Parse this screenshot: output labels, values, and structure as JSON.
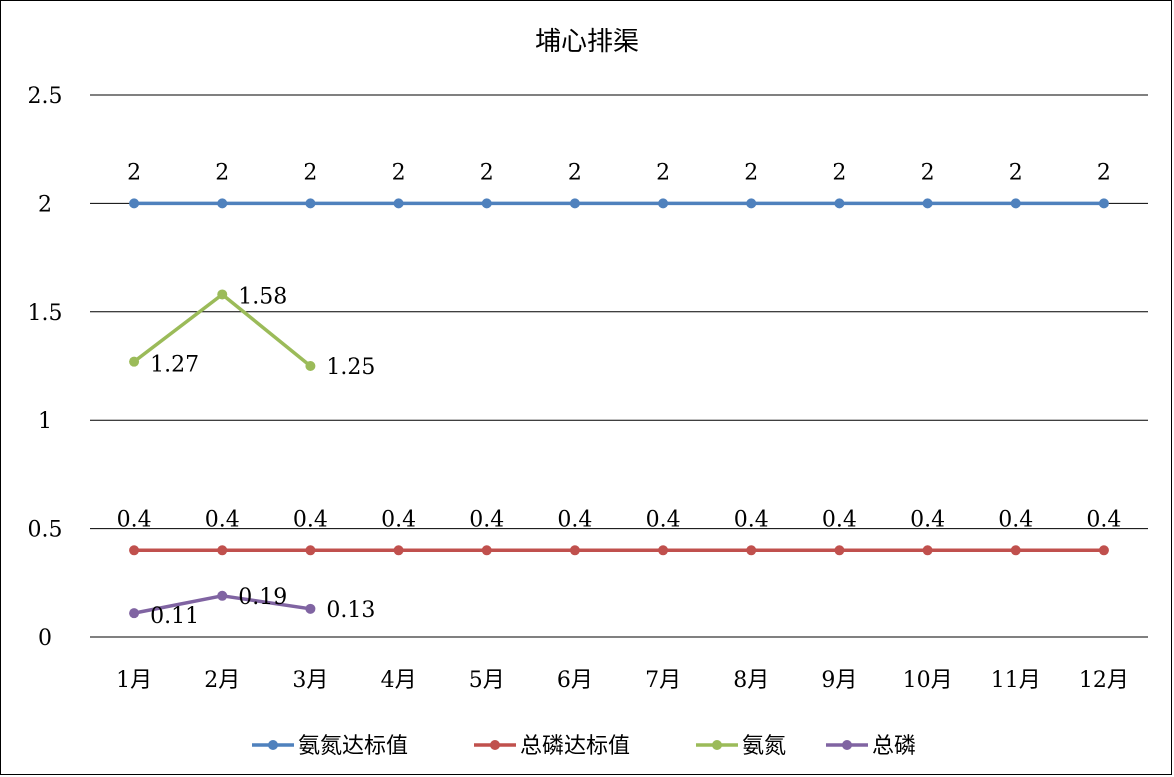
{
  "chart_data": {
    "type": "line",
    "title": "埔心排渠",
    "categories": [
      "1月",
      "2月",
      "3月",
      "4月",
      "5月",
      "6月",
      "7月",
      "8月",
      "9月",
      "10月",
      "11月",
      "12月"
    ],
    "ylim": [
      0,
      2.5
    ],
    "yticks": [
      0,
      0.5,
      1,
      1.5,
      2,
      2.5
    ],
    "ytick_labels": [
      "0",
      "0.5",
      "1",
      "1.5",
      "2",
      "2.5"
    ],
    "grid": true,
    "legend_position": "bottom",
    "series": [
      {
        "name": "氨氮达标值",
        "color": "#4f81bd",
        "values": [
          2,
          2,
          2,
          2,
          2,
          2,
          2,
          2,
          2,
          2,
          2,
          2
        ],
        "labels": [
          "2",
          "2",
          "2",
          "2",
          "2",
          "2",
          "2",
          "2",
          "2",
          "2",
          "2",
          "2"
        ]
      },
      {
        "name": "总磷达标值",
        "color": "#c0504d",
        "values": [
          0.4,
          0.4,
          0.4,
          0.4,
          0.4,
          0.4,
          0.4,
          0.4,
          0.4,
          0.4,
          0.4,
          0.4
        ],
        "labels": [
          "0.4",
          "0.4",
          "0.4",
          "0.4",
          "0.4",
          "0.4",
          "0.4",
          "0.4",
          "0.4",
          "0.4",
          "0.4",
          "0.4"
        ]
      },
      {
        "name": "氨氮",
        "color": "#9bbb59",
        "values": [
          1.27,
          1.58,
          1.25,
          null,
          null,
          null,
          null,
          null,
          null,
          null,
          null,
          null
        ],
        "labels": [
          "1.27",
          "1.58",
          "1.25",
          null,
          null,
          null,
          null,
          null,
          null,
          null,
          null,
          null
        ]
      },
      {
        "name": "总磷",
        "color": "#8064a2",
        "values": [
          0.11,
          0.19,
          0.13,
          null,
          null,
          null,
          null,
          null,
          null,
          null,
          null,
          null
        ],
        "labels": [
          "0.11",
          "0.19",
          "0.13",
          null,
          null,
          null,
          null,
          null,
          null,
          null,
          null,
          null
        ]
      }
    ]
  }
}
